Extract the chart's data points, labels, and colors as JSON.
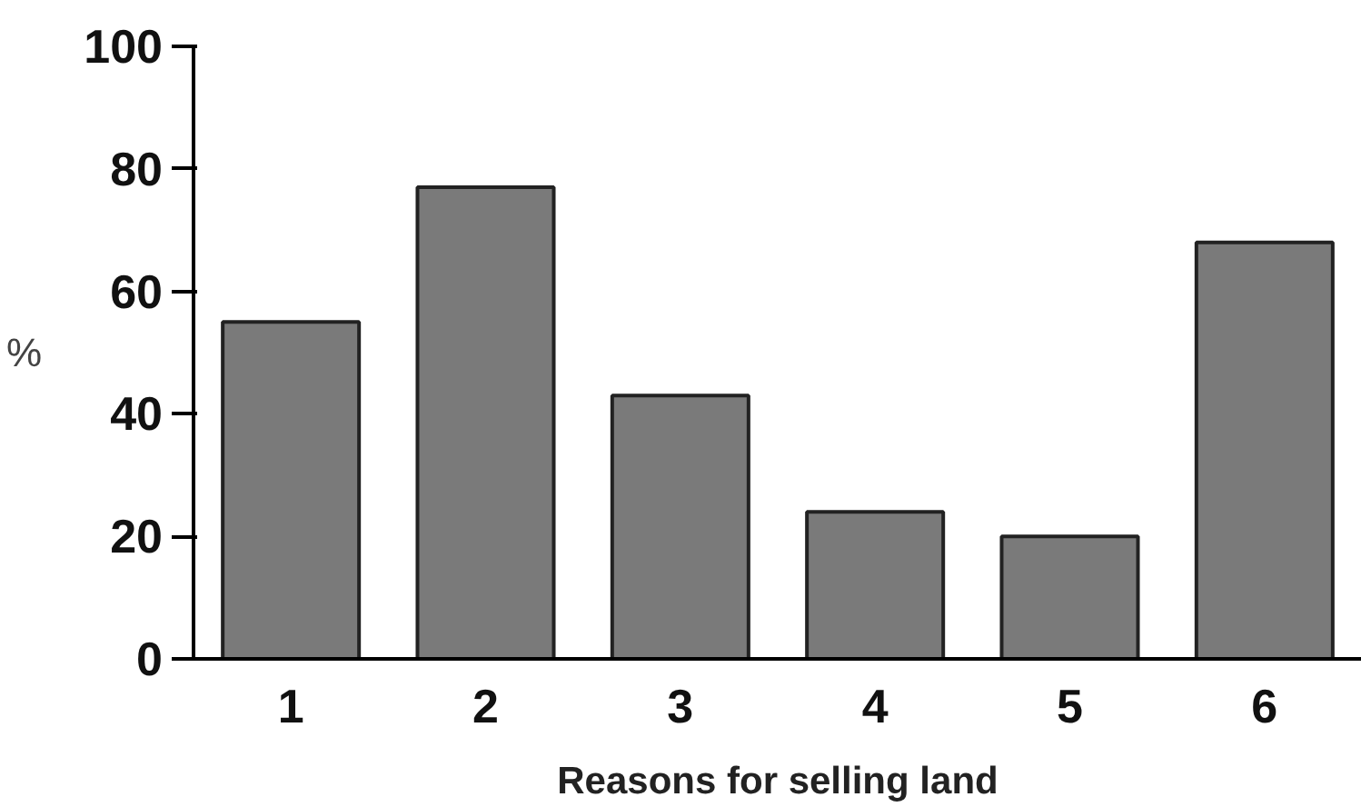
{
  "chart_data": {
    "type": "bar",
    "xlabel": "Reasons for selling land",
    "ylabel": "%",
    "categories": [
      "1",
      "2",
      "3",
      "4",
      "5",
      "6"
    ],
    "values": [
      55,
      77,
      43,
      24,
      20,
      68
    ],
    "color": "#7a7a7a",
    "ylim": [
      0,
      100
    ],
    "yticks": [
      0,
      20,
      40,
      60,
      80,
      100
    ],
    "grid": false
  }
}
